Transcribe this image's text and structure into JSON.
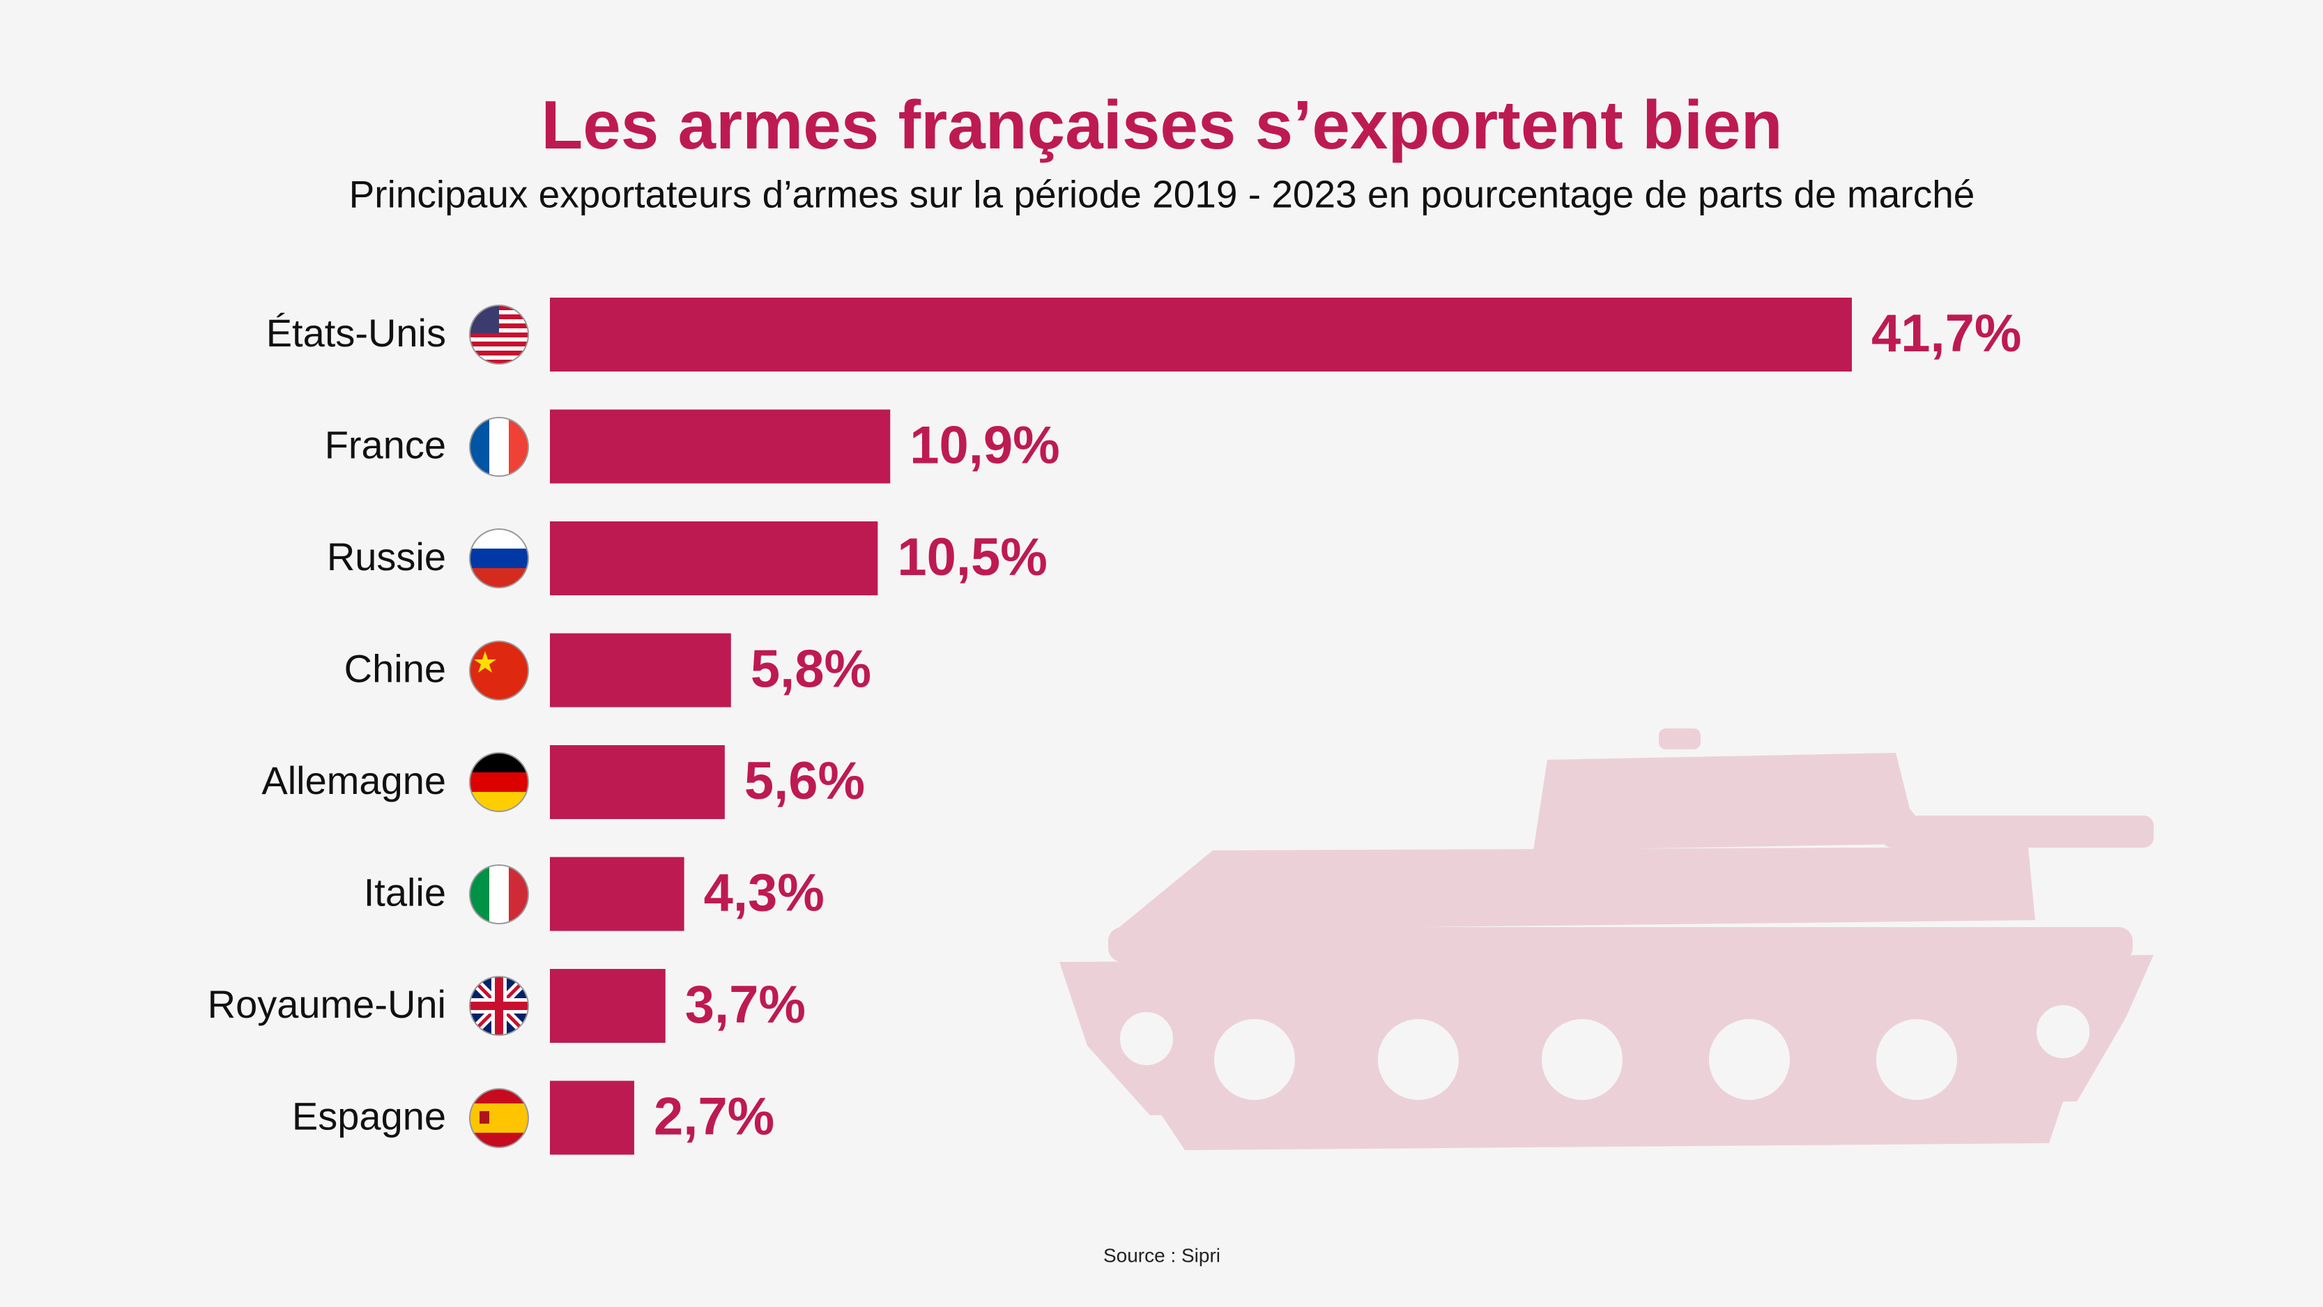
{
  "chart_data": {
    "type": "bar",
    "orientation": "horizontal",
    "title": "Les armes françaises s’exportent bien",
    "subtitle": "Principaux exportateurs d’armes sur la période 2019 - 2023 en pourcentage de parts de marché",
    "categories": [
      "États-Unis",
      "France",
      "Russie",
      "Chine",
      "Allemagne",
      "Italie",
      "Royaume-Uni",
      "Espagne"
    ],
    "values": [
      41.7,
      10.9,
      10.5,
      5.8,
      5.6,
      4.3,
      3.7,
      2.7
    ],
    "value_labels": [
      "41,7%",
      "10,9%",
      "10,5%",
      "5,8%",
      "5,6%",
      "4,3%",
      "3,7%",
      "2,7%"
    ],
    "color": "#be1a52",
    "source": "Source : Sipri"
  }
}
